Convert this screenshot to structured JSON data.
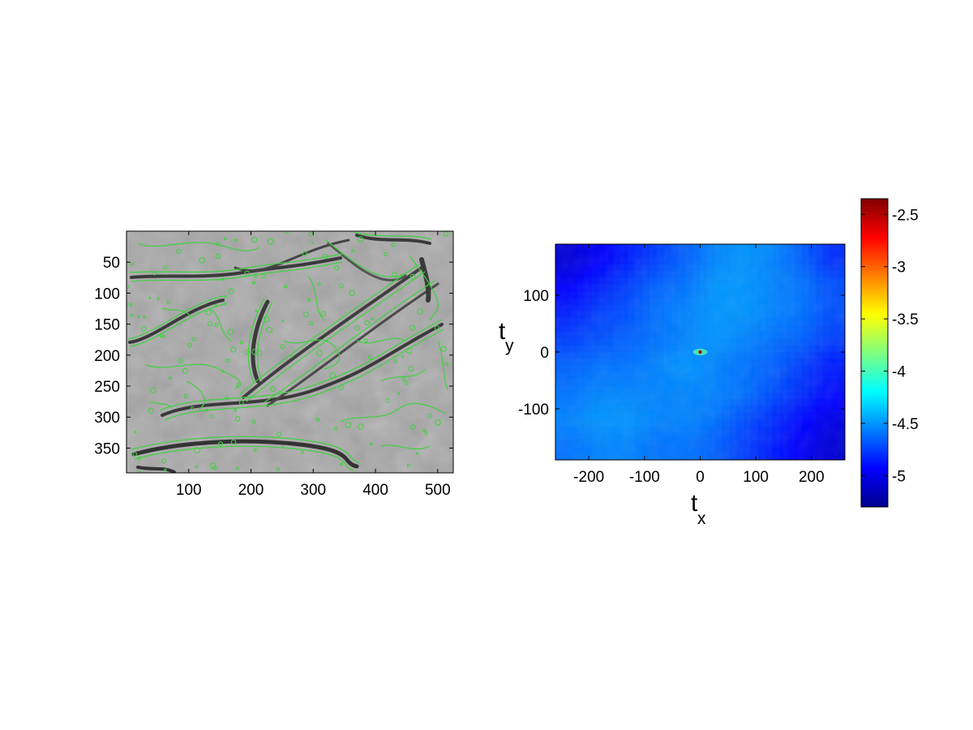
{
  "chart_data": [
    {
      "type": "image",
      "description_values": "grayscale texture image with green edge contours",
      "xlim": [
        0,
        525
      ],
      "ylim": [
        0,
        390
      ],
      "y_reversed": true,
      "xticks": [
        100,
        200,
        300,
        400,
        500
      ],
      "yticks": [
        50,
        100,
        150,
        200,
        250,
        300,
        350
      ],
      "xlabel": "",
      "ylabel": "",
      "title": "",
      "colors": {
        "background": "#a6a6a6",
        "contour": "#3fd23f",
        "edge_dark": "#2e2e2e"
      }
    },
    {
      "type": "heatmap",
      "xlim": [
        -260,
        260
      ],
      "ylim": [
        -190,
        190
      ],
      "xticks": [
        -200,
        -100,
        0,
        100,
        200
      ],
      "yticks": [
        -100,
        0,
        100
      ],
      "xlabel": {
        "main": "t",
        "sub": "x"
      },
      "ylabel": {
        "main": "t",
        "sub": "y"
      },
      "title": "",
      "colormap": "jet",
      "clim": [
        -5.3,
        -2.35
      ],
      "colorbar_ticks": [
        -2.5,
        -3,
        -3.5,
        -4,
        -4.5,
        -5
      ],
      "peak": {
        "x": 0,
        "y": 0,
        "value": -2.4
      },
      "grid": [
        [
          -5.05,
          -4.95,
          -4.85,
          -4.75,
          -4.65,
          -4.55,
          -4.5,
          -4.55,
          -4.65,
          -4.8
        ],
        [
          -4.95,
          -4.85,
          -4.75,
          -4.65,
          -4.6,
          -4.5,
          -4.5,
          -4.55,
          -4.6,
          -4.7
        ],
        [
          -4.85,
          -4.75,
          -4.7,
          -4.6,
          -4.55,
          -4.5,
          -4.5,
          -4.55,
          -4.6,
          -4.7
        ],
        [
          -4.75,
          -4.7,
          -4.65,
          -4.6,
          -4.55,
          -4.5,
          -4.55,
          -4.6,
          -4.65,
          -4.75
        ],
        [
          -4.65,
          -4.6,
          -4.6,
          -4.55,
          -4.5,
          -4.55,
          -4.6,
          -4.65,
          -4.75,
          -4.85
        ],
        [
          -4.6,
          -4.55,
          -4.55,
          -4.55,
          -4.55,
          -4.55,
          -4.6,
          -4.7,
          -4.8,
          -4.9
        ],
        [
          -4.55,
          -4.5,
          -4.5,
          -4.55,
          -4.55,
          -4.6,
          -4.7,
          -4.8,
          -4.9,
          -5.0
        ],
        [
          -4.6,
          -4.55,
          -4.55,
          -4.6,
          -4.6,
          -4.65,
          -4.75,
          -4.85,
          -4.95,
          -5.05
        ]
      ]
    }
  ]
}
